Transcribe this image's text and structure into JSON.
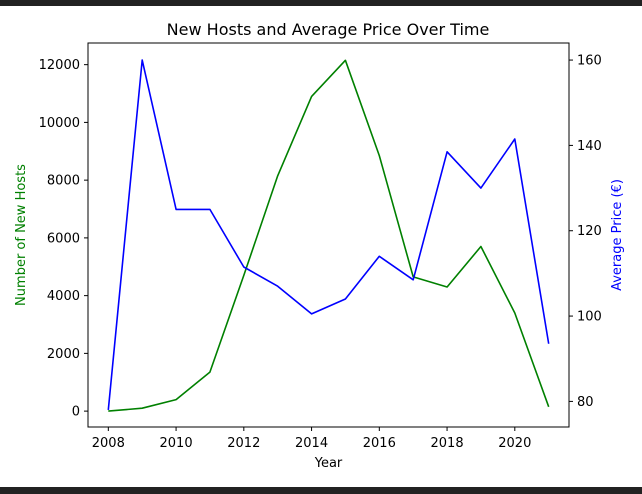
{
  "chart_data": {
    "type": "line",
    "title": "New Hosts and Average Price Over Time",
    "xlabel": "Year",
    "ylabel_left": "Number of New Hosts",
    "ylabel_right": "Average Price (€)",
    "xlim": [
      2007.4,
      2021.6
    ],
    "ylim_left": [
      -550,
      12750
    ],
    "ylim_right": [
      74,
      164
    ],
    "x_ticks": [
      "2008",
      "2010",
      "2012",
      "2014",
      "2016",
      "2018",
      "2020"
    ],
    "y_ticks_left": [
      "0",
      "2000",
      "4000",
      "6000",
      "8000",
      "10000",
      "12000"
    ],
    "y_ticks_right": [
      "80",
      "100",
      "120",
      "140",
      "160"
    ],
    "grid": false,
    "x": [
      2008,
      2009,
      2010,
      2011,
      2012,
      2013,
      2014,
      2015,
      2016,
      2017,
      2018,
      2019,
      2020,
      2021
    ],
    "series": [
      {
        "axis": "left",
        "color": "#008000",
        "values": [
          0,
          100,
          400,
          1350,
          4700,
          8150,
          10900,
          12150,
          8850,
          4650,
          4300,
          5700,
          3400,
          150
        ]
      },
      {
        "axis": "right",
        "color": "#0000ff",
        "values": [
          78,
          160,
          125,
          125,
          111.5,
          107,
          100.5,
          104,
          114,
          108.5,
          138.5,
          130,
          141.5,
          93.5
        ]
      }
    ],
    "colors": {
      "left_axis_label": "#008000",
      "right_axis_label": "#0000ff"
    }
  }
}
